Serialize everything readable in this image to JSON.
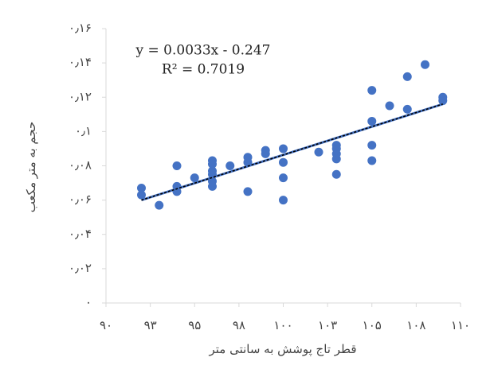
{
  "chart_data": {
    "type": "scatter",
    "equation": "y = 0.0033x - 0.247",
    "r_squared": "R² = 0.7019",
    "x_label": "قطر تاج پوشش به سانتی متر",
    "y_label": "حجم به متر مکعب",
    "color": "#4472c4",
    "x": [
      92,
      92,
      93,
      94,
      94,
      94,
      95,
      96,
      96,
      96,
      96,
      96,
      96,
      97,
      98,
      98,
      98,
      99,
      99,
      100,
      100,
      100,
      100,
      102,
      103,
      103,
      103,
      103,
      103,
      105,
      105,
      105,
      105,
      106,
      107,
      107,
      108,
      109,
      109
    ],
    "y": [
      0.067,
      0.063,
      0.057,
      0.08,
      0.068,
      0.065,
      0.073,
      0.083,
      0.081,
      0.077,
      0.075,
      0.071,
      0.068,
      0.08,
      0.085,
      0.082,
      0.065,
      0.089,
      0.087,
      0.09,
      0.082,
      0.073,
      0.06,
      0.088,
      0.092,
      0.09,
      0.087,
      0.084,
      0.075,
      0.124,
      0.106,
      0.092,
      0.083,
      0.115,
      0.132,
      0.113,
      0.139,
      0.12,
      0.118
    ],
    "trendline": {
      "x": [
        92,
        109
      ],
      "y": [
        0.06,
        0.116
      ]
    },
    "xlim": [
      90,
      110
    ],
    "xticks": [
      {
        "value": 90,
        "label": "۹۰"
      },
      {
        "value": 92.5,
        "label": "۹۳"
      },
      {
        "value": 95,
        "label": "۹۵"
      },
      {
        "value": 97.5,
        "label": "۹۸"
      },
      {
        "value": 100,
        "label": "۱۰۰"
      },
      {
        "value": 102.5,
        "label": "۱۰۳"
      },
      {
        "value": 105,
        "label": "۱۰۵"
      },
      {
        "value": 107.5,
        "label": "۱۰۸"
      },
      {
        "value": 110,
        "label": "۱۱۰"
      }
    ],
    "ylim": [
      0,
      0.16
    ],
    "yticks": [
      {
        "value": 0,
        "label": "۰"
      },
      {
        "value": 0.02,
        "label": "۰٫۰۲"
      },
      {
        "value": 0.04,
        "label": "۰٫۰۴"
      },
      {
        "value": 0.06,
        "label": "۰٫۰۶"
      },
      {
        "value": 0.08,
        "label": "۰٫۰۸"
      },
      {
        "value": 0.1,
        "label": "۰٫۱"
      },
      {
        "value": 0.12,
        "label": "۰٫۱۲"
      },
      {
        "value": 0.14,
        "label": "۰٫۱۴"
      },
      {
        "value": 0.16,
        "label": "۰٫۱۶"
      }
    ]
  }
}
